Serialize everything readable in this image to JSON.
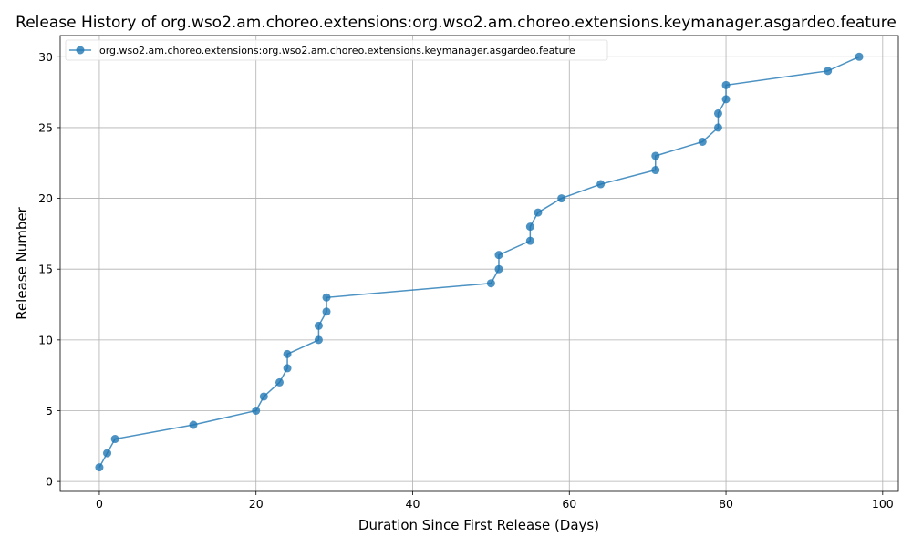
{
  "chart_data": {
    "type": "line",
    "title": "Release History of org.wso2.am.choreo.extensions:org.wso2.am.choreo.extensions.keymanager.asgardeo.feature",
    "xlabel": "Duration Since First Release (Days)",
    "ylabel": "Release Number",
    "xlim": [
      -5,
      102
    ],
    "ylim": [
      -0.7,
      31.5
    ],
    "xticks": [
      0,
      20,
      40,
      60,
      80,
      100
    ],
    "yticks": [
      0,
      5,
      10,
      15,
      20,
      25,
      30
    ],
    "grid": true,
    "legend_position": "top-left",
    "series": [
      {
        "name": "org.wso2.am.choreo.extensions:org.wso2.am.choreo.extensions.keymanager.asgardeo.feature",
        "color": "#1f77b4",
        "x": [
          0,
          1,
          2,
          12,
          20,
          21,
          23,
          24,
          24,
          28,
          28,
          29,
          29,
          50,
          51,
          51,
          55,
          55,
          56,
          59,
          64,
          71,
          71,
          77,
          79,
          79,
          80,
          80,
          93,
          97
        ],
        "y": [
          1,
          2,
          3,
          4,
          5,
          6,
          7,
          8,
          9,
          10,
          11,
          12,
          13,
          14,
          15,
          16,
          17,
          18,
          19,
          20,
          21,
          22,
          23,
          24,
          25,
          26,
          27,
          28,
          29,
          30
        ]
      }
    ]
  }
}
